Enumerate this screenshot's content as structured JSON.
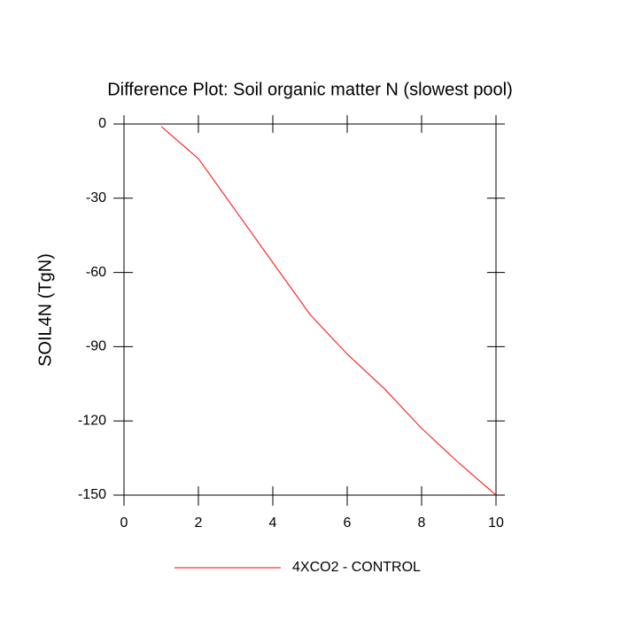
{
  "chart_data": {
    "type": "line",
    "title": "Difference Plot: Soil organic matter N (slowest pool)",
    "y_label": "SOIL4N  (TgN)",
    "x": [
      1,
      2,
      3,
      4,
      5,
      6,
      7,
      8,
      9,
      10
    ],
    "series": [
      {
        "name": "4XCO2 - CONTROL",
        "color": "#ff0000",
        "values": [
          -1,
          -14,
          -35,
          -56,
          -77,
          -93,
          -107,
          -123,
          -137,
          -150
        ]
      }
    ],
    "xlim": [
      0,
      10
    ],
    "xticks": [
      0,
      2,
      4,
      6,
      8,
      10
    ],
    "ylim": [
      -150,
      0
    ],
    "yticks": [
      0,
      -30,
      -60,
      -90,
      -120,
      -150
    ],
    "legend": "bottom"
  }
}
